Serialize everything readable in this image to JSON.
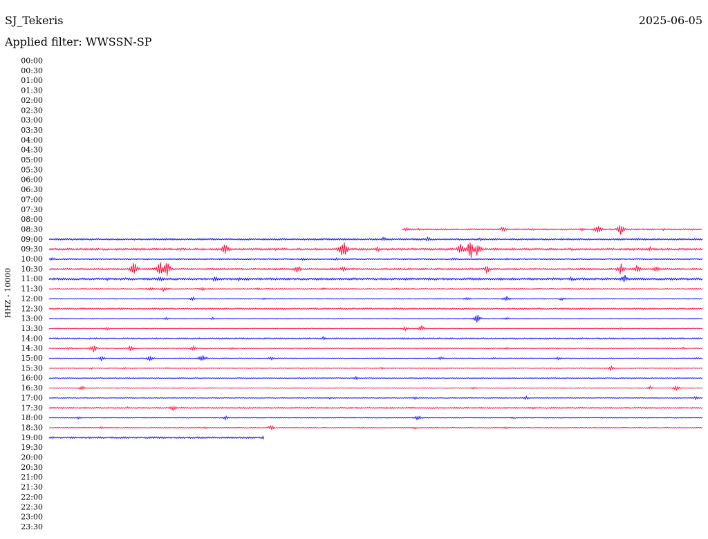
{
  "header": {
    "station": "SJ_Tekeris",
    "date": "2025-06-05",
    "filter_label": "Applied filter: WWSSN-SP"
  },
  "chart_data": {
    "type": "line",
    "title": "",
    "ylabel": "HHZ - 10000",
    "xlabel": "",
    "row_labels": [
      "00:00",
      "00:30",
      "01:00",
      "01:30",
      "02:00",
      "02:30",
      "03:00",
      "03:30",
      "04:00",
      "04:30",
      "05:00",
      "05:30",
      "06:00",
      "06:30",
      "07:00",
      "07:30",
      "08:00",
      "08:30",
      "09:00",
      "09:30",
      "10:00",
      "10:30",
      "11:00",
      "11:30",
      "12:00",
      "12:30",
      "13:00",
      "13:30",
      "14:00",
      "14:30",
      "15:00",
      "15:30",
      "16:00",
      "16:30",
      "17:00",
      "17:30",
      "18:00",
      "18:30",
      "19:00",
      "19:30",
      "20:00",
      "20:30",
      "21:00",
      "21:30",
      "22:00",
      "22:30",
      "23:00",
      "23:30"
    ],
    "colors": [
      "#ff0033",
      "#0000ff"
    ],
    "traces": [
      {
        "row": "08:30",
        "color": "#ff0033",
        "start": 0.54,
        "end": 1.0,
        "noise": 1.0,
        "events": [
          [
            0.547,
            3
          ],
          [
            0.565,
            2
          ],
          [
            0.695,
            5
          ],
          [
            0.74,
            2
          ],
          [
            0.815,
            3
          ],
          [
            0.84,
            8
          ],
          [
            0.875,
            9
          ],
          [
            0.94,
            2
          ]
        ]
      },
      {
        "row": "09:00",
        "color": "#0000ff",
        "start": 0,
        "end": 1.0,
        "noise": 1.2,
        "events": [
          [
            0.035,
            2
          ],
          [
            0.512,
            4
          ],
          [
            0.58,
            5
          ],
          [
            0.66,
            3
          ],
          [
            0.85,
            2
          ]
        ]
      },
      {
        "row": "09:30",
        "color": "#ff0033",
        "start": 0,
        "end": 1.0,
        "noise": 1.5,
        "events": [
          [
            0.14,
            2
          ],
          [
            0.27,
            12
          ],
          [
            0.45,
            18
          ],
          [
            0.503,
            5
          ],
          [
            0.63,
            10
          ],
          [
            0.645,
            18
          ],
          [
            0.655,
            14
          ],
          [
            0.8,
            2
          ],
          [
            0.92,
            4
          ]
        ]
      },
      {
        "row": "10:00",
        "color": "#0000ff",
        "start": 0,
        "end": 1.0,
        "noise": 0.8,
        "events": [
          [
            0.005,
            3
          ],
          [
            0.39,
            3
          ],
          [
            0.44,
            2
          ],
          [
            0.62,
            3
          ],
          [
            0.7,
            2
          ]
        ]
      },
      {
        "row": "10:30",
        "color": "#ff0033",
        "start": 0,
        "end": 1.0,
        "noise": 1.2,
        "events": [
          [
            0.13,
            12
          ],
          [
            0.17,
            14
          ],
          [
            0.18,
            14
          ],
          [
            0.38,
            8
          ],
          [
            0.45,
            5
          ],
          [
            0.67,
            7
          ],
          [
            0.875,
            10
          ],
          [
            0.9,
            8
          ],
          [
            0.93,
            6
          ]
        ]
      },
      {
        "row": "11:00",
        "color": "#0000ff",
        "start": 0,
        "end": 1.0,
        "noise": 1.5,
        "events": [
          [
            0.09,
            3
          ],
          [
            0.17,
            5
          ],
          [
            0.255,
            6
          ],
          [
            0.29,
            3
          ],
          [
            0.43,
            2
          ],
          [
            0.8,
            4
          ],
          [
            0.88,
            8
          ]
        ]
      },
      {
        "row": "11:30",
        "color": "#ff0033",
        "start": 0,
        "end": 1.0,
        "noise": 0.6,
        "events": [
          [
            0.155,
            3
          ],
          [
            0.175,
            4
          ],
          [
            0.235,
            3
          ],
          [
            0.32,
            2
          ],
          [
            0.42,
            2
          ],
          [
            0.67,
            2
          ]
        ]
      },
      {
        "row": "12:00",
        "color": "#0000ff",
        "start": 0,
        "end": 1.0,
        "noise": 0.6,
        "events": [
          [
            0.22,
            3
          ],
          [
            0.33,
            2
          ],
          [
            0.64,
            3
          ],
          [
            0.7,
            5
          ],
          [
            0.785,
            3
          ]
        ]
      },
      {
        "row": "12:30",
        "color": "#ff0033",
        "start": 0,
        "end": 1.0,
        "noise": 1.0,
        "events": [
          [
            0.11,
            2
          ],
          [
            0.41,
            2
          ]
        ]
      },
      {
        "row": "13:00",
        "color": "#0000ff",
        "start": 0,
        "end": 1.0,
        "noise": 0.6,
        "events": [
          [
            0.18,
            2
          ],
          [
            0.25,
            2
          ],
          [
            0.655,
            7
          ],
          [
            0.7,
            3
          ]
        ]
      },
      {
        "row": "13:30",
        "color": "#ff0033",
        "start": 0,
        "end": 1.0,
        "noise": 0.6,
        "events": [
          [
            0.09,
            3
          ],
          [
            0.545,
            4
          ],
          [
            0.57,
            5
          ],
          [
            0.875,
            2
          ]
        ]
      },
      {
        "row": "14:00",
        "color": "#0000ff",
        "start": 0,
        "end": 1.0,
        "noise": 1.0,
        "events": [
          [
            0.42,
            3
          ],
          [
            0.44,
            2
          ]
        ]
      },
      {
        "row": "14:30",
        "color": "#ff0033",
        "start": 0,
        "end": 1.0,
        "noise": 0.6,
        "events": [
          [
            0.03,
            3
          ],
          [
            0.068,
            6
          ],
          [
            0.125,
            5
          ],
          [
            0.22,
            4
          ],
          [
            0.28,
            2
          ],
          [
            0.7,
            2
          ],
          [
            0.97,
            2
          ]
        ]
      },
      {
        "row": "15:00",
        "color": "#0000ff",
        "start": 0,
        "end": 1.0,
        "noise": 0.6,
        "events": [
          [
            0.08,
            4
          ],
          [
            0.155,
            5
          ],
          [
            0.235,
            7
          ],
          [
            0.34,
            3
          ],
          [
            0.6,
            3
          ],
          [
            0.68,
            2
          ],
          [
            0.78,
            3
          ],
          [
            0.99,
            2
          ]
        ]
      },
      {
        "row": "15:30",
        "color": "#ff0033",
        "start": 0,
        "end": 1.0,
        "noise": 0.6,
        "events": [
          [
            0.065,
            2
          ],
          [
            0.115,
            2
          ],
          [
            0.18,
            2
          ],
          [
            0.51,
            2
          ],
          [
            0.86,
            4
          ]
        ]
      },
      {
        "row": "16:00",
        "color": "#0000ff",
        "start": 0,
        "end": 1.0,
        "noise": 0.7,
        "events": [
          [
            0.2,
            2
          ],
          [
            0.47,
            3
          ]
        ]
      },
      {
        "row": "16:30",
        "color": "#ff0033",
        "start": 0,
        "end": 1.0,
        "noise": 0.6,
        "events": [
          [
            0.05,
            4
          ],
          [
            0.65,
            2
          ],
          [
            0.92,
            3
          ],
          [
            0.96,
            4
          ]
        ]
      },
      {
        "row": "17:00",
        "color": "#0000ff",
        "start": 0,
        "end": 1.0,
        "noise": 0.6,
        "events": [
          [
            0.43,
            2
          ],
          [
            0.56,
            2
          ],
          [
            0.73,
            3
          ],
          [
            0.99,
            3
          ]
        ]
      },
      {
        "row": "17:30",
        "color": "#ff0033",
        "start": 0,
        "end": 1.0,
        "noise": 1.0,
        "events": [
          [
            0.12,
            2
          ],
          [
            0.19,
            5
          ],
          [
            0.74,
            2
          ]
        ]
      },
      {
        "row": "18:00",
        "color": "#0000ff",
        "start": 0,
        "end": 1.0,
        "noise": 0.5,
        "events": [
          [
            0.045,
            2
          ],
          [
            0.27,
            3
          ],
          [
            0.565,
            5
          ],
          [
            0.71,
            2
          ]
        ]
      },
      {
        "row": "18:30",
        "color": "#ff0033",
        "start": 0,
        "end": 1.0,
        "noise": 0.6,
        "events": [
          [
            0.08,
            2
          ],
          [
            0.24,
            2
          ],
          [
            0.34,
            4
          ],
          [
            0.56,
            2
          ],
          [
            0.7,
            2
          ]
        ]
      },
      {
        "row": "19:00",
        "color": "#0000ff",
        "start": 0,
        "end": 0.33,
        "noise": 1.2,
        "events": [
          [
            0.33,
            4
          ]
        ]
      }
    ]
  }
}
